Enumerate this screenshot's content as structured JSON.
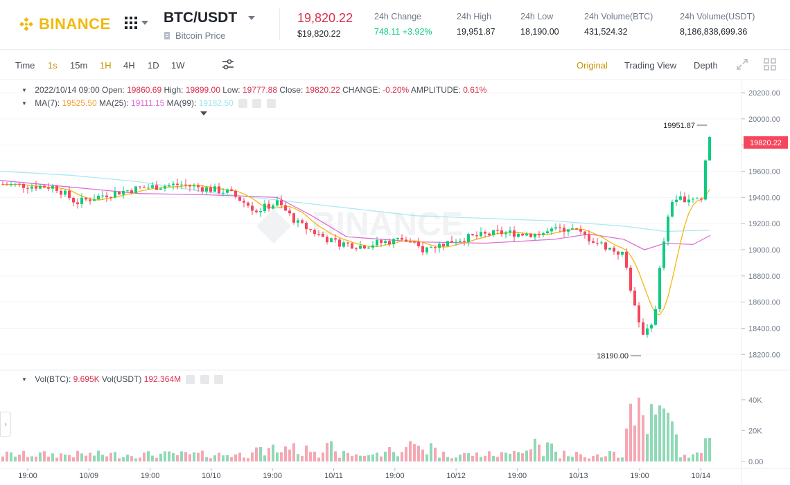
{
  "header": {
    "brand": "BINANCE",
    "pair": "BTC/USDT",
    "pair_subtitle": "Bitcoin Price",
    "last_price": "19,820.22",
    "last_price_usd": "$19,820.22",
    "stats": [
      {
        "label": "24h Change",
        "value": "748.11 +3.92%",
        "positive": true
      },
      {
        "label": "24h High",
        "value": "19,951.87"
      },
      {
        "label": "24h Low",
        "value": "18,190.00"
      },
      {
        "label": "24h Volume(BTC)",
        "value": "431,524.32"
      },
      {
        "label": "24h Volume(USDT)",
        "value": "8,186,838,699.36"
      }
    ]
  },
  "toolbar": {
    "intervals": [
      "Time",
      "1s",
      "15m",
      "1H",
      "4H",
      "1D",
      "1W"
    ],
    "active_intervals": [
      "1s",
      "1H"
    ],
    "views": [
      "Original",
      "Trading View",
      "Depth"
    ],
    "active_view": "Original"
  },
  "legend": {
    "date": "2022/10/14 09:00",
    "open_label": "Open:",
    "open": "19860.69",
    "high_label": "High:",
    "high": "19899.00",
    "low_label": "Low:",
    "low": "19777.88",
    "close_label": "Close:",
    "close": "19820.22",
    "change_label": "CHANGE:",
    "change": "-0.20%",
    "amp_label": "AMPLITUDE:",
    "amp": "0.61%",
    "ma7_label": "MA(7):",
    "ma7": "19525.50",
    "ma25_label": "MA(25):",
    "ma25": "19111.15",
    "ma99_label": "MA(99):",
    "ma99": "19182.50",
    "vol_btc_label": "Vol(BTC):",
    "vol_btc": "9.695K",
    "vol_usdt_label": "Vol(USDT)",
    "vol_usdt": "192.364M"
  },
  "colors": {
    "up": "#0ecb81",
    "down": "#f6465d",
    "ma7": "#f0b90b",
    "ma25": "#de6fd8",
    "ma99": "#a8e9f2",
    "accent": "#f0b90b"
  },
  "watermark": "BINANCE",
  "chart_data": {
    "type": "candlestick",
    "price_axis_ticks": [
      "20200.00",
      "20000.00",
      "19800.00",
      "19600.00",
      "19400.00",
      "19200.00",
      "19000.00",
      "18800.00",
      "18600.00",
      "18400.00",
      "18200.00"
    ],
    "price_range": [
      18080,
      20290
    ],
    "volume_axis_ticks": [
      "40K",
      "20K",
      "0.00"
    ],
    "time_axis_labels": [
      "19:00",
      "10/09",
      "19:00",
      "10/10",
      "19:00",
      "10/11",
      "19:00",
      "10/12",
      "19:00",
      "10/13",
      "19:00",
      "10/14"
    ],
    "current_price_label": "19820.22",
    "high_marker": "19951.87",
    "low_marker": "18190.00",
    "ma99_path": [
      [
        0,
        19600
      ],
      [
        100,
        19570
      ],
      [
        200,
        19520
      ],
      [
        300,
        19440
      ],
      [
        400,
        19380
      ],
      [
        500,
        19320
      ],
      [
        600,
        19260
      ],
      [
        700,
        19240
      ],
      [
        800,
        19220
      ],
      [
        900,
        19180
      ],
      [
        960,
        19140
      ],
      [
        1025,
        19150
      ]
    ],
    "ma25_path": [
      [
        0,
        19530
      ],
      [
        100,
        19480
      ],
      [
        200,
        19430
      ],
      [
        300,
        19420
      ],
      [
        400,
        19400
      ],
      [
        450,
        19260
      ],
      [
        500,
        19100
      ],
      [
        600,
        19060
      ],
      [
        700,
        19050
      ],
      [
        800,
        19080
      ],
      [
        850,
        19120
      ],
      [
        900,
        19080
      ],
      [
        930,
        19000
      ],
      [
        960,
        19050
      ],
      [
        1000,
        19040
      ],
      [
        1025,
        19110
      ]
    ]
  }
}
